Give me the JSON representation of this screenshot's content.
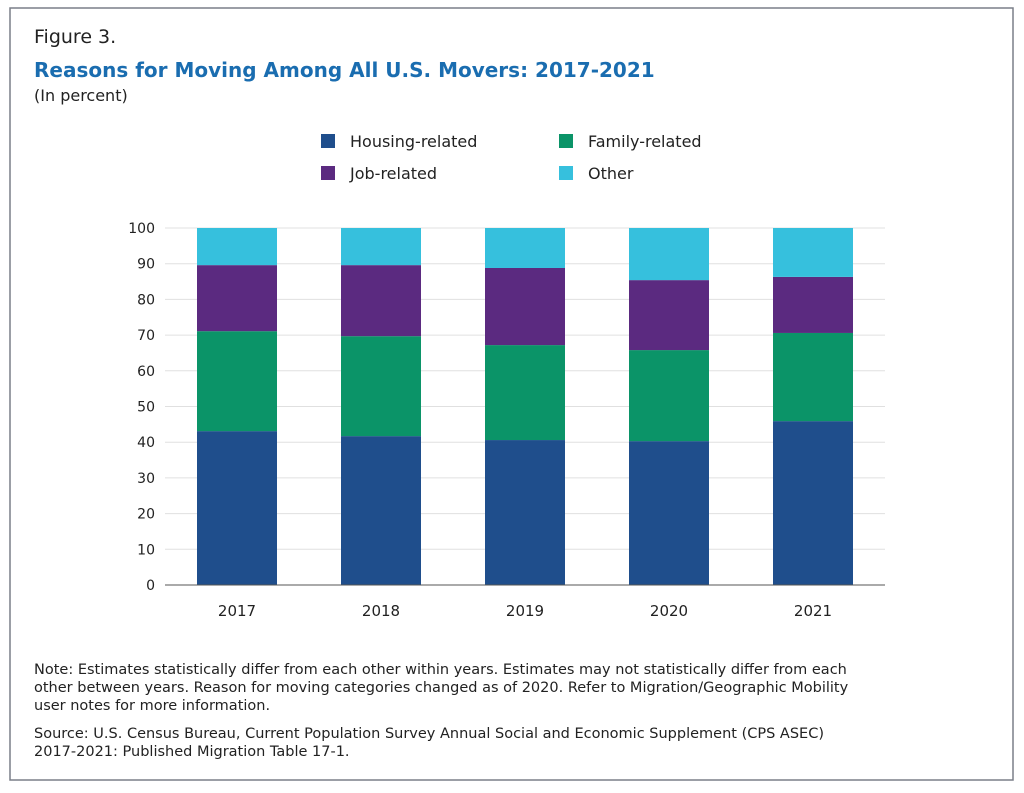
{
  "chart_data": {
    "type": "stacked_bar",
    "figure_label": "Figure 3.",
    "title": "Reasons for Moving Among All U.S. Movers: 2017-2021",
    "subtitle": "(In percent)",
    "categories": [
      "2017",
      "2018",
      "2019",
      "2020",
      "2021"
    ],
    "series": [
      {
        "name": "Housing-related",
        "color": "#1f4e8c",
        "values": [
          43.1,
          41.7,
          40.6,
          40.3,
          45.9
        ]
      },
      {
        "name": "Family-related",
        "color": "#0b9468",
        "values": [
          28.0,
          28.0,
          26.6,
          25.5,
          24.7
        ]
      },
      {
        "name": "Job-related",
        "color": "#5b2a80",
        "values": [
          18.5,
          19.9,
          21.6,
          19.6,
          15.7
        ]
      },
      {
        "name": "Other",
        "color": "#36c0dd",
        "values": [
          10.4,
          10.4,
          11.2,
          14.6,
          13.7
        ]
      }
    ],
    "ylim": [
      0,
      100
    ],
    "yticks": [
      0,
      10,
      20,
      30,
      40,
      50,
      60,
      70,
      80,
      90,
      100
    ],
    "grid": true,
    "note_lines": [
      "Note: Estimates statistically differ from each other within years. Estimates may not statistically differ from each",
      "other between years. Reason for moving categories changed as of 2020. Refer to Migration/Geographic Mobility",
      "user notes for more information."
    ],
    "source_lines": [
      "Source: U.S. Census Bureau, Current Population Survey Annual Social and Economic Supplement (CPS ASEC)",
      "2017-2021: Published Migration Table 17-1."
    ]
  }
}
